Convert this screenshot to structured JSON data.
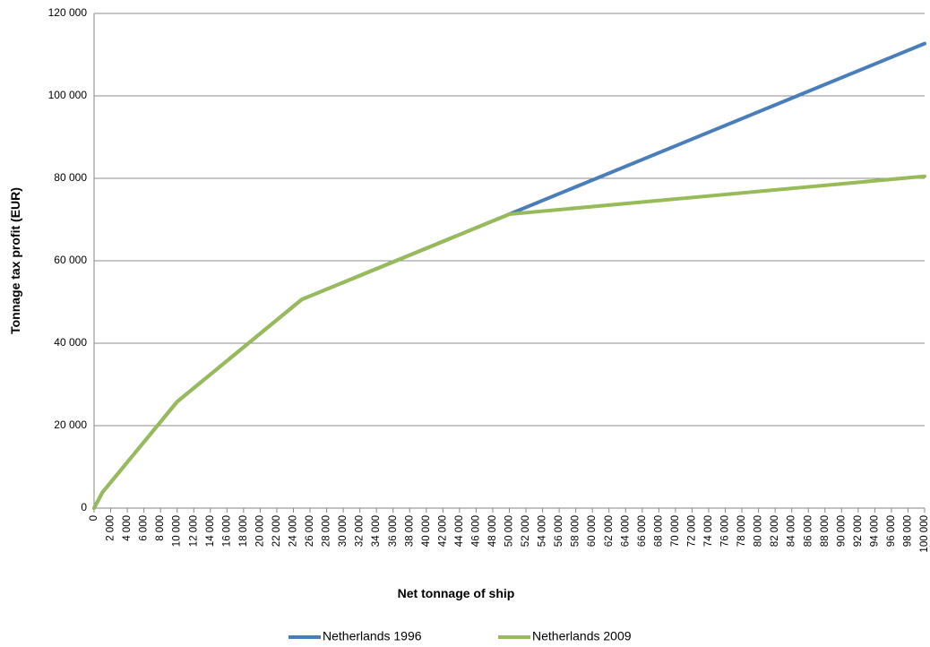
{
  "chart_data": {
    "type": "line",
    "title": "",
    "xlabel": "Net tonnage of ship",
    "ylabel": "Tonnage tax profit (EUR)",
    "xlim": [
      0,
      100000
    ],
    "ylim": [
      0,
      120000
    ],
    "x_ticks": [
      "0",
      "2 000",
      "4 000",
      "6 000",
      "8 000",
      "10 000",
      "12 000",
      "14 000",
      "16 000",
      "18 000",
      "20 000",
      "22 000",
      "24 000",
      "26 000",
      "28 000",
      "30 000",
      "32 000",
      "34 000",
      "36 000",
      "38 000",
      "40 000",
      "42 000",
      "44 000",
      "46 000",
      "48 000",
      "50 000",
      "52 000",
      "54 000",
      "56 000",
      "58 000",
      "60 000",
      "62 000",
      "64 000",
      "66 000",
      "68 000",
      "70 000",
      "72 000",
      "74 000",
      "76 000",
      "78 000",
      "80 000",
      "82 000",
      "84 000",
      "86 000",
      "88 000",
      "90 000",
      "92 000",
      "94 000",
      "96 000",
      "98 000",
      "100 000"
    ],
    "y_ticks": [
      "0",
      "20 000",
      "40 000",
      "60 000",
      "80 000",
      "100 000",
      "120 000"
    ],
    "grid": true,
    "legend_position": "bottom",
    "series": [
      {
        "name": "Netherlands 1996",
        "color": "#4a7ebb",
        "x": [
          0,
          1000,
          10000,
          25000,
          50000,
          100000
        ],
        "y": [
          0,
          3800,
          25800,
          50600,
          71300,
          112700
        ]
      },
      {
        "name": "Netherlands 2009",
        "color": "#98bb59",
        "x": [
          0,
          1000,
          10000,
          25000,
          50000,
          100000
        ],
        "y": [
          0,
          3800,
          25800,
          50600,
          71300,
          80500
        ]
      }
    ]
  }
}
